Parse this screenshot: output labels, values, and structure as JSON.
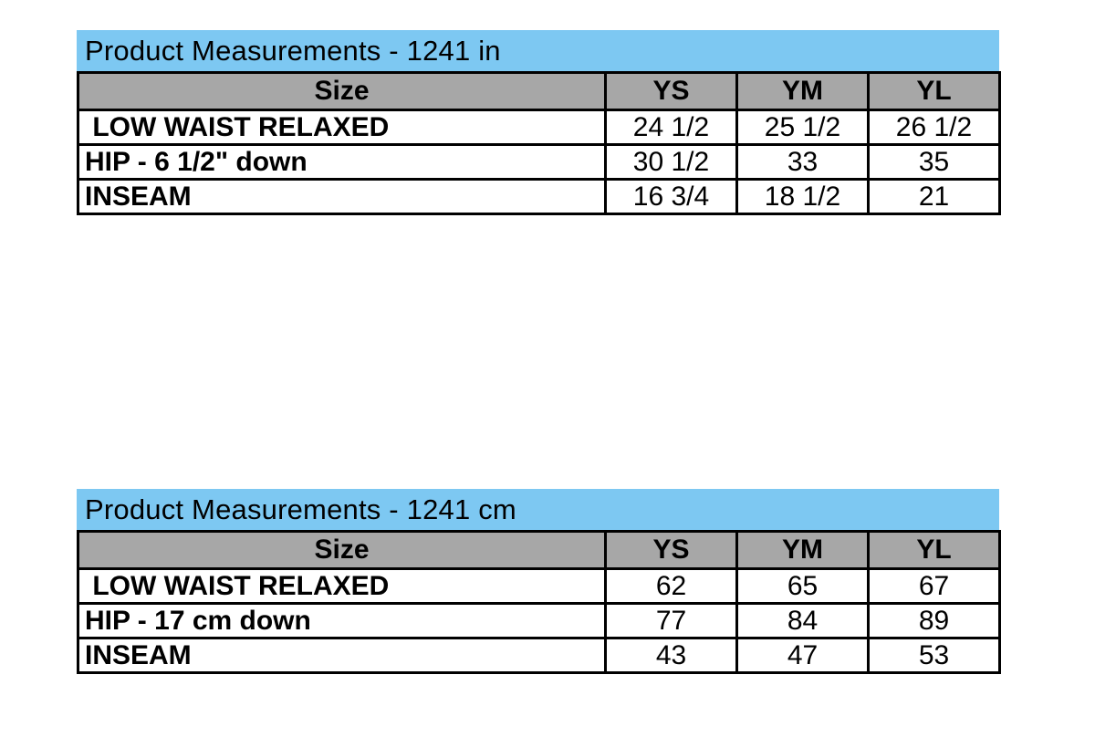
{
  "colors": {
    "title_bar_bg": "#7DC8F2",
    "header_bg": "#A7A7A7",
    "border": "#000000",
    "text": "#000000",
    "page_bg": "#ffffff"
  },
  "tables": [
    {
      "title": "Product Measurements - 1241 in",
      "size_header": "Size",
      "columns": [
        "YS",
        "YM",
        "YL"
      ],
      "rows": [
        {
          "label": " LOW WAIST RELAXED",
          "values": [
            "24 1/2",
            "25 1/2",
            "26 1/2"
          ]
        },
        {
          "label": "HIP - 6 1/2\" down",
          "values": [
            "30 1/2",
            "33",
            "35"
          ]
        },
        {
          "label": "INSEAM",
          "values": [
            "16 3/4",
            "18 1/2",
            "21"
          ]
        }
      ]
    },
    {
      "title": "Product Measurements - 1241 cm",
      "size_header": "Size",
      "columns": [
        "YS",
        "YM",
        "YL"
      ],
      "rows": [
        {
          "label": " LOW WAIST RELAXED",
          "values": [
            "62",
            "65",
            "67"
          ]
        },
        {
          "label": "HIP - 17 cm down",
          "values": [
            "77",
            "84",
            "89"
          ]
        },
        {
          "label": "INSEAM",
          "values": [
            "43",
            "47",
            "53"
          ]
        }
      ]
    }
  ]
}
